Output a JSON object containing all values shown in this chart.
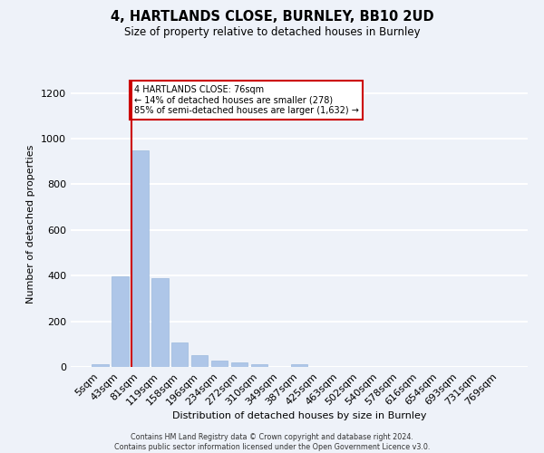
{
  "title_line1": "4, HARTLANDS CLOSE, BURNLEY, BB10 2UD",
  "title_line2": "Size of property relative to detached houses in Burnley",
  "xlabel": "Distribution of detached houses by size in Burnley",
  "ylabel": "Number of detached properties",
  "bar_labels": [
    "5sqm",
    "43sqm",
    "81sqm",
    "119sqm",
    "158sqm",
    "196sqm",
    "234sqm",
    "272sqm",
    "310sqm",
    "349sqm",
    "387sqm",
    "425sqm",
    "463sqm",
    "502sqm",
    "540sqm",
    "578sqm",
    "616sqm",
    "654sqm",
    "693sqm",
    "731sqm",
    "769sqm"
  ],
  "bar_values": [
    12,
    395,
    950,
    390,
    108,
    52,
    27,
    20,
    13,
    0,
    13,
    0,
    0,
    0,
    0,
    0,
    0,
    0,
    0,
    0,
    0
  ],
  "bar_color": "#aec6e8",
  "bar_edge_color": "#8fb0d8",
  "background_color": "#eef2f9",
  "grid_color": "#ffffff",
  "ylim": [
    0,
    1250
  ],
  "yticks": [
    0,
    200,
    400,
    600,
    800,
    1000,
    1200
  ],
  "red_line_index": 2,
  "red_line_color": "#cc0000",
  "annotation_text": "4 HARTLANDS CLOSE: 76sqm\n← 14% of detached houses are smaller (278)\n85% of semi-detached houses are larger (1,632) →",
  "annotation_box_color": "#ffffff",
  "annotation_box_edge": "#cc0000",
  "footnote_line1": "Contains HM Land Registry data © Crown copyright and database right 2024.",
  "footnote_line2": "Contains public sector information licensed under the Open Government Licence v3.0."
}
